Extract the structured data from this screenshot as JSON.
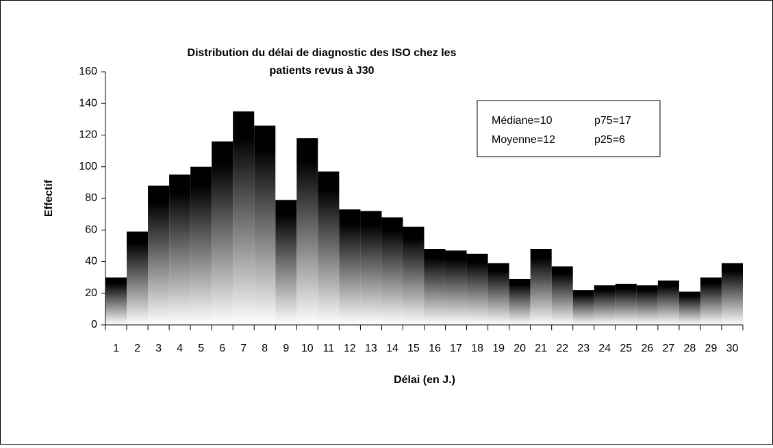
{
  "chart_data": {
    "type": "bar",
    "title": [
      "Distribution du délai de diagnostic des ISO chez les",
      "patients revus à J30"
    ],
    "x_label": "Délai (en J.)",
    "y_label": "Effectif",
    "categories": [
      "1",
      "2",
      "3",
      "4",
      "5",
      "6",
      "7",
      "8",
      "9",
      "10",
      "11",
      "12",
      "13",
      "14",
      "15",
      "16",
      "17",
      "18",
      "19",
      "20",
      "21",
      "22",
      "23",
      "24",
      "25",
      "26",
      "27",
      "28",
      "29",
      "30"
    ],
    "values": [
      30,
      59,
      88,
      95,
      100,
      116,
      135,
      126,
      79,
      118,
      97,
      73,
      72,
      68,
      62,
      48,
      47,
      45,
      39,
      29,
      48,
      37,
      22,
      25,
      26,
      25,
      28,
      21,
      30,
      39
    ],
    "color": "#000000",
    "ylim": [
      0,
      160
    ],
    "yticks": [
      0,
      20,
      40,
      60,
      80,
      100,
      120,
      140,
      160
    ],
    "grid": false,
    "annotations": [
      [
        "Médiane=10",
        "p75=17"
      ],
      [
        "Moyenne=12",
        "p25=6"
      ]
    ]
  }
}
